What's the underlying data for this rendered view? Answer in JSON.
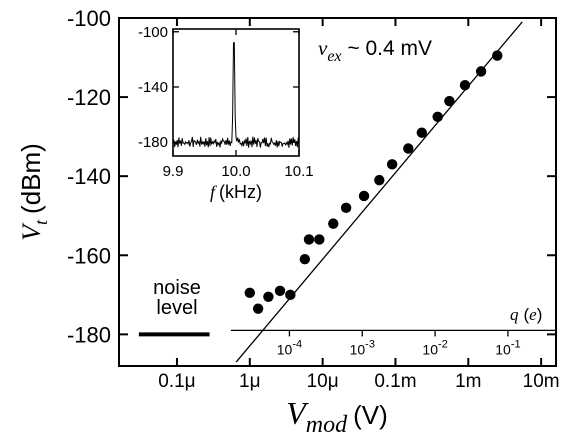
{
  "chart_data": [
    {
      "type": "scatter",
      "xscale": "log",
      "ylabel_var": "V",
      "ylabel_sub": "t",
      "ylabel_unit": "(dBm)",
      "xlabel_var": "V",
      "xlabel_sub": "mod",
      "xlabel_unit": "(V)",
      "xlim": [
        1.6e-08,
        0.016
      ],
      "ylim": [
        -188,
        -100
      ],
      "yticks": [
        -100,
        -120,
        -140,
        -160,
        -180
      ],
      "xticks": [
        {
          "value": 1e-07,
          "label": "0.1μ"
        },
        {
          "value": 1e-06,
          "label": "1μ"
        },
        {
          "value": 1e-05,
          "label": "10μ"
        },
        {
          "value": 0.0001,
          "label": "0.1m"
        },
        {
          "value": 0.001,
          "label": "1m"
        },
        {
          "value": 0.01,
          "label": "10m"
        }
      ],
      "annotation": {
        "var": "v",
        "sub": "ex",
        "text": " ~ 0.4 mV"
      },
      "noise_level": {
        "label_line1": "noise",
        "label_line2": "level",
        "y": -180,
        "x_range": [
          3e-08,
          2.8e-07
        ]
      },
      "fit_line": {
        "x": [
          6.5e-07,
          0.0055
        ],
        "y": [
          -187,
          -101
        ]
      },
      "points": [
        {
          "x": 1e-06,
          "y": -169.5
        },
        {
          "x": 1.3e-06,
          "y": -173.5
        },
        {
          "x": 1.8e-06,
          "y": -170.5
        },
        {
          "x": 2.6e-06,
          "y": -169
        },
        {
          "x": 3.6e-06,
          "y": -170
        },
        {
          "x": 5.7e-06,
          "y": -161
        },
        {
          "x": 6.5e-06,
          "y": -156
        },
        {
          "x": 9e-06,
          "y": -156
        },
        {
          "x": 1.4e-05,
          "y": -152
        },
        {
          "x": 2.1e-05,
          "y": -148
        },
        {
          "x": 3.7e-05,
          "y": -145
        },
        {
          "x": 6e-05,
          "y": -141
        },
        {
          "x": 9e-05,
          "y": -137
        },
        {
          "x": 0.00015,
          "y": -133
        },
        {
          "x": 0.00023,
          "y": -129
        },
        {
          "x": 0.00038,
          "y": -125
        },
        {
          "x": 0.00055,
          "y": -121
        },
        {
          "x": 0.0009,
          "y": -117
        },
        {
          "x": 0.0015,
          "y": -113.5
        },
        {
          "x": 0.0025,
          "y": -109.5
        }
      ],
      "q_axis": {
        "label_var": "q",
        "label_unit": "(e)",
        "y": -179,
        "x_range": [
          5.5e-07,
          0.016
        ],
        "ticks": [
          {
            "exponent": "-4",
            "x": 3.5e-06
          },
          {
            "exponent": "-3",
            "x": 3.5e-05
          },
          {
            "exponent": "-2",
            "x": 0.00035
          },
          {
            "exponent": "-1",
            "x": 0.0035
          }
        ]
      }
    },
    {
      "type": "line",
      "xlabel_var": "f",
      "xlabel_unit": "(kHz)",
      "xlim": [
        9.9,
        10.1
      ],
      "ylim": [
        -190,
        -98
      ],
      "xticks": [
        "9.9",
        "10.0",
        "10.1"
      ],
      "yticks": [
        -100,
        -140,
        -180
      ],
      "peak": {
        "x": 9.997,
        "y": -108
      },
      "noise_floor": -180
    }
  ]
}
